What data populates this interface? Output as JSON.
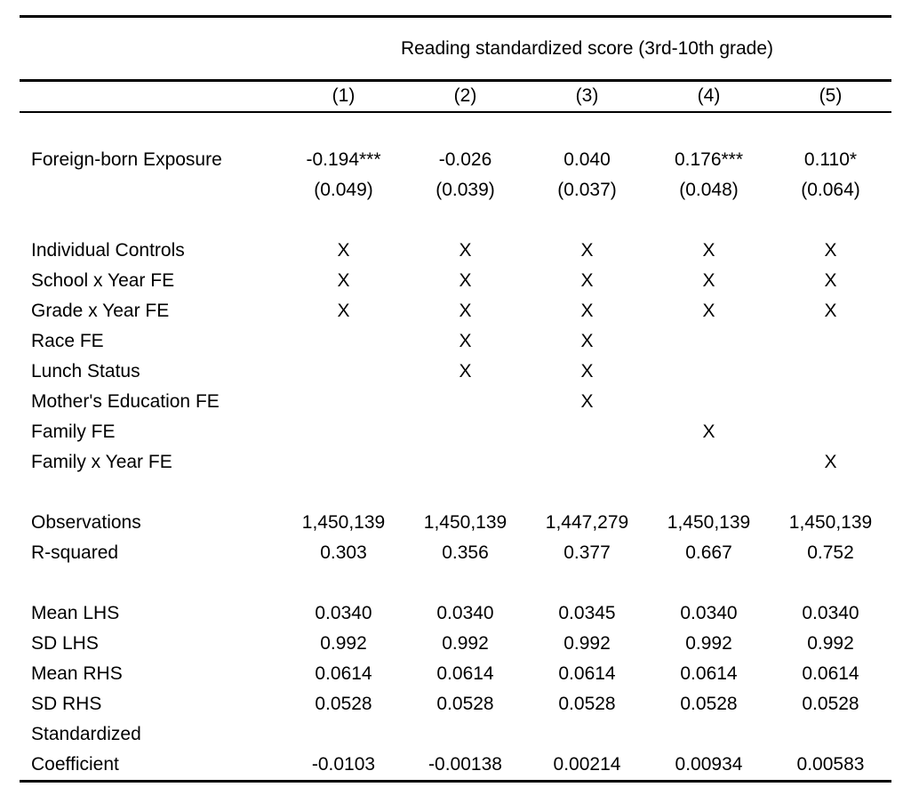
{
  "colors": {
    "background": "#ffffff",
    "text": "#000000",
    "rule": "#000000"
  },
  "table": {
    "title": "Reading standardized score (3rd-10th grade)",
    "column_headers": [
      "(1)",
      "(2)",
      "(3)",
      "(4)",
      "(5)"
    ],
    "sections": [
      {
        "name": "coefficients",
        "rows": [
          {
            "label": "Foreign-born Exposure",
            "cells": [
              "-0.194***",
              "-0.026",
              "0.040",
              "0.176***",
              "0.110*"
            ]
          },
          {
            "label": "",
            "cells": [
              "(0.049)",
              "(0.039)",
              "(0.037)",
              "(0.048)",
              "(0.064)"
            ]
          }
        ]
      },
      {
        "name": "controls",
        "rows": [
          {
            "label": "Individual Controls",
            "cells": [
              "X",
              "X",
              "X",
              "X",
              "X"
            ]
          },
          {
            "label": "School x Year FE",
            "cells": [
              "X",
              "X",
              "X",
              "X",
              "X"
            ]
          },
          {
            "label": "Grade x Year FE",
            "cells": [
              "X",
              "X",
              "X",
              "X",
              "X"
            ]
          },
          {
            "label": "Race FE",
            "cells": [
              "",
              "X",
              "X",
              "",
              ""
            ]
          },
          {
            "label": "Lunch Status",
            "cells": [
              "",
              "X",
              "X",
              "",
              ""
            ]
          },
          {
            "label": "Mother's Education FE",
            "cells": [
              "",
              "",
              "X",
              "",
              ""
            ]
          },
          {
            "label": "Family FE",
            "cells": [
              "",
              "",
              "",
              "X",
              ""
            ]
          },
          {
            "label": "Family x Year FE",
            "cells": [
              "",
              "",
              "",
              "",
              "X"
            ]
          }
        ]
      },
      {
        "name": "model-fit",
        "rows": [
          {
            "label": "Observations",
            "cells": [
              "1,450,139",
              "1,450,139",
              "1,447,279",
              "1,450,139",
              "1,450,139"
            ]
          },
          {
            "label": "R-squared",
            "cells": [
              "0.303",
              "0.356",
              "0.377",
              "0.667",
              "0.752"
            ]
          }
        ]
      },
      {
        "name": "summary-stats",
        "rows": [
          {
            "label": "Mean LHS",
            "cells": [
              "0.0340",
              "0.0340",
              "0.0345",
              "0.0340",
              "0.0340"
            ]
          },
          {
            "label": "SD LHS",
            "cells": [
              "0.992",
              "0.992",
              "0.992",
              "0.992",
              "0.992"
            ]
          },
          {
            "label": "Mean RHS",
            "cells": [
              "0.0614",
              "0.0614",
              "0.0614",
              "0.0614",
              "0.0614"
            ]
          },
          {
            "label": "SD RHS",
            "cells": [
              "0.0528",
              "0.0528",
              "0.0528",
              "0.0528",
              "0.0528"
            ]
          },
          {
            "label": "Standardized",
            "cells": [
              "",
              "",
              "",
              "",
              ""
            ]
          },
          {
            "label": "Coefficient",
            "cells": [
              "-0.0103",
              "-0.00138",
              "0.00214",
              "0.00934",
              "0.00583"
            ]
          }
        ]
      }
    ]
  }
}
